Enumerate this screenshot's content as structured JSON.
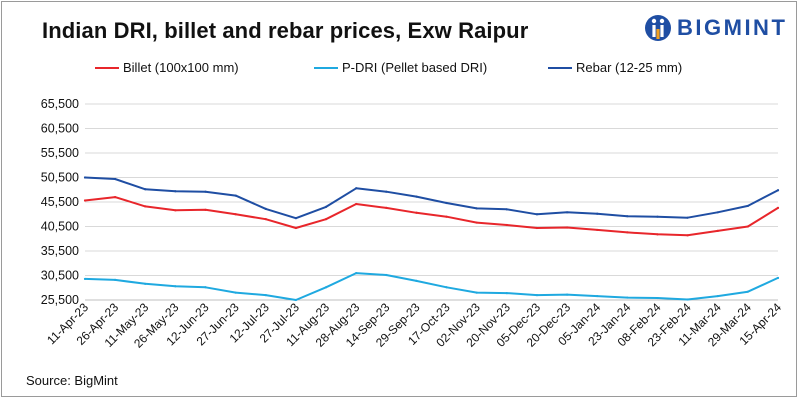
{
  "title": "Indian DRI, billet and rebar prices, Exw Raipur",
  "logo": {
    "text": "BIGMINT",
    "icon": "bigmint-logo-icon"
  },
  "source": "Source: BigMint",
  "chart_data": {
    "type": "line",
    "xlabel": "",
    "ylabel": "",
    "ylim": [
      25500,
      65500
    ],
    "yticks": [
      "65,500",
      "60,500",
      "55,500",
      "50,500",
      "45,500",
      "40,500",
      "35,500",
      "30,500",
      "25,500"
    ],
    "ytick_values": [
      65500,
      60500,
      55500,
      50500,
      45500,
      40500,
      35500,
      30500,
      25500
    ],
    "grid": "horizontal",
    "legend_position": "top",
    "x": [
      "11-Apr-23",
      "26-Apr-23",
      "11-May-23",
      "26-May-23",
      "12-Jun-23",
      "27-Jun-23",
      "12-Jul-23",
      "27-Jul-23",
      "11-Aug-23",
      "28-Aug-23",
      "14-Sep-23",
      "29-Sep-23",
      "17-Oct-23",
      "02-Nov-23",
      "20-Nov-23",
      "05-Dec-23",
      "20-Dec-23",
      "05-Jan-24",
      "23-Jan-24",
      "08-Feb-24",
      "23-Feb-24",
      "11-Mar-24",
      "29-Mar-24",
      "15-Apr-24"
    ],
    "series": [
      {
        "name": "Billet (100x100 mm)",
        "color": "#e8262b",
        "values": [
          45800,
          46500,
          44600,
          43800,
          43900,
          43000,
          42000,
          40200,
          42000,
          45100,
          44300,
          43300,
          42500,
          41300,
          40800,
          40200,
          40300,
          39800,
          39300,
          38900,
          38700,
          39600,
          40500,
          44300
        ]
      },
      {
        "name": "P-DRI (Pellet based DRI)",
        "color": "#1fa9e0",
        "values": [
          29800,
          29600,
          28800,
          28300,
          28100,
          27000,
          26500,
          25500,
          28100,
          31000,
          30600,
          29400,
          28100,
          27000,
          26900,
          26500,
          26600,
          26300,
          26000,
          25900,
          25600,
          26300,
          27200,
          30000
        ]
      },
      {
        "name": "Rebar (12-25 mm)",
        "color": "#1f4ea3",
        "values": [
          50500,
          50200,
          48100,
          47700,
          47600,
          46800,
          44100,
          42200,
          44500,
          48300,
          47600,
          46600,
          45300,
          44200,
          44000,
          43000,
          43400,
          43100,
          42600,
          42500,
          42300,
          43400,
          44700,
          47900
        ]
      }
    ]
  }
}
